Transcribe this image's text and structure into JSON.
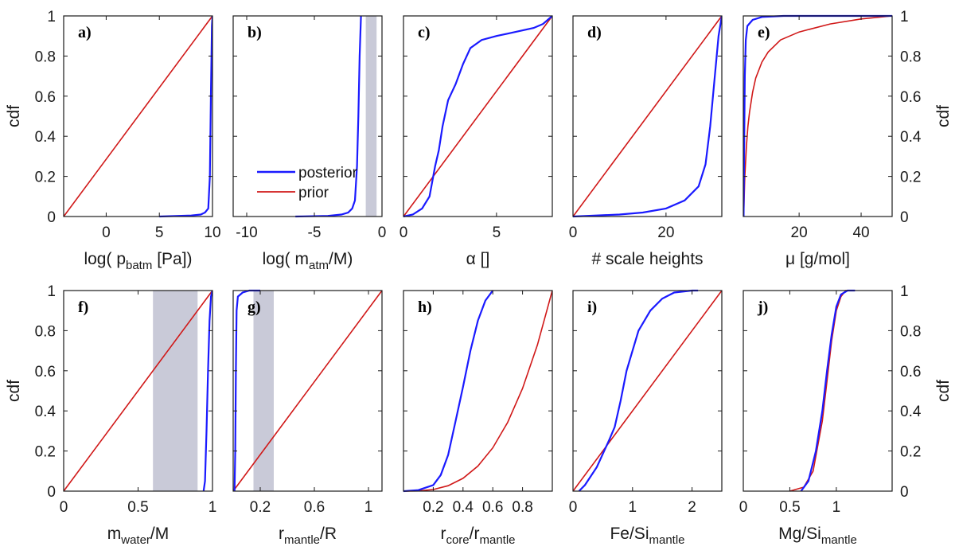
{
  "colors": {
    "posterior": "#1a1aff",
    "prior": "#d01818",
    "shade": "#c9cad8",
    "axis": "#1a1a1a"
  },
  "legend": {
    "posterior_label": "posterior",
    "prior_label": "prior"
  },
  "cdf_label": "cdf",
  "y_ticks": [
    "0",
    "0.2",
    "0.4",
    "0.6",
    "0.8",
    "1"
  ],
  "chart_data": [
    {
      "letter": "a)",
      "xlabel_parts": [
        "log( ",
        "p",
        "batm",
        " [Pa])"
      ],
      "xlim": [
        -4,
        10
      ],
      "xticks": [
        0,
        5,
        10
      ],
      "xtick_labels": [
        "0",
        "5",
        "10"
      ],
      "prior": [
        [
          -4,
          0
        ],
        [
          10,
          1
        ]
      ],
      "posterior": [
        [
          5,
          0
        ],
        [
          8,
          0.005
        ],
        [
          8.9,
          0.01
        ],
        [
          9.3,
          0.02
        ],
        [
          9.6,
          0.04
        ],
        [
          9.75,
          0.2
        ],
        [
          9.85,
          0.6
        ],
        [
          9.95,
          0.95
        ],
        [
          10,
          1
        ]
      ]
    },
    {
      "letter": "b)",
      "xlabel_parts": [
        "log( ",
        "m",
        "atm",
        "/M)"
      ],
      "xlim": [
        -11,
        0
      ],
      "xticks": [
        -10,
        -5,
        0
      ],
      "xtick_labels": [
        "-10",
        "-5",
        "0"
      ],
      "shade": [
        -1.2,
        -0.4
      ],
      "posterior": [
        [
          -6.4,
          0
        ],
        [
          -4,
          0.003
        ],
        [
          -3,
          0.01
        ],
        [
          -2.5,
          0.02
        ],
        [
          -2.2,
          0.04
        ],
        [
          -2.0,
          0.08
        ],
        [
          -1.85,
          0.25
        ],
        [
          -1.75,
          0.5
        ],
        [
          -1.65,
          0.8
        ],
        [
          -1.55,
          1
        ]
      ]
    },
    {
      "letter": "c)",
      "xlabel_parts": [
        "α []"
      ],
      "xlim": [
        0,
        8
      ],
      "xticks": [
        0,
        5
      ],
      "xtick_labels": [
        "0",
        "5"
      ],
      "prior": [
        [
          0,
          0
        ],
        [
          8,
          1
        ]
      ],
      "posterior": [
        [
          0,
          0
        ],
        [
          0.5,
          0.01
        ],
        [
          1,
          0.04
        ],
        [
          1.4,
          0.1
        ],
        [
          1.7,
          0.25
        ],
        [
          1.9,
          0.33
        ],
        [
          2.1,
          0.45
        ],
        [
          2.4,
          0.58
        ],
        [
          2.8,
          0.66
        ],
        [
          3.2,
          0.76
        ],
        [
          3.6,
          0.84
        ],
        [
          4.2,
          0.88
        ],
        [
          5,
          0.9
        ],
        [
          6,
          0.92
        ],
        [
          7,
          0.94
        ],
        [
          7.5,
          0.96
        ],
        [
          8,
          1
        ]
      ]
    },
    {
      "letter": "d)",
      "xlabel_parts": [
        "# scale heights"
      ],
      "xlim": [
        0,
        32
      ],
      "xticks": [
        0,
        20
      ],
      "xtick_labels": [
        "0",
        "20"
      ],
      "prior": [
        [
          0,
          0
        ],
        [
          32,
          1
        ]
      ],
      "posterior": [
        [
          0,
          0
        ],
        [
          5,
          0.005
        ],
        [
          10,
          0.01
        ],
        [
          15,
          0.02
        ],
        [
          20,
          0.04
        ],
        [
          24,
          0.08
        ],
        [
          27,
          0.15
        ],
        [
          28.5,
          0.26
        ],
        [
          29.5,
          0.45
        ],
        [
          30.5,
          0.7
        ],
        [
          31.3,
          0.9
        ],
        [
          32,
          1
        ]
      ]
    },
    {
      "letter": "e)",
      "xlabel_parts": [
        "μ [g/mol]"
      ],
      "xlim": [
        2,
        50
      ],
      "xticks": [
        20,
        40
      ],
      "xtick_labels": [
        "20",
        "40"
      ],
      "prior": [
        [
          2.1,
          0
        ],
        [
          2.5,
          0.2
        ],
        [
          3,
          0.35
        ],
        [
          3.5,
          0.45
        ],
        [
          4,
          0.52
        ],
        [
          5,
          0.62
        ],
        [
          6,
          0.69
        ],
        [
          8,
          0.77
        ],
        [
          10,
          0.82
        ],
        [
          14,
          0.88
        ],
        [
          20,
          0.92
        ],
        [
          30,
          0.96
        ],
        [
          40,
          0.985
        ],
        [
          50,
          1
        ]
      ],
      "posterior": [
        [
          2.1,
          0
        ],
        [
          2.3,
          0.4
        ],
        [
          2.5,
          0.7
        ],
        [
          2.8,
          0.88
        ],
        [
          3.3,
          0.95
        ],
        [
          5,
          0.98
        ],
        [
          8,
          0.995
        ],
        [
          15,
          1
        ],
        [
          50,
          1
        ]
      ]
    },
    {
      "letter": "f)",
      "xlabel_parts": [
        "m",
        "water",
        "/M"
      ],
      "xlim": [
        0,
        1
      ],
      "xticks": [
        0,
        0.5,
        1
      ],
      "xtick_labels": [
        "0",
        "0.5",
        "1"
      ],
      "shade": [
        0.6,
        0.9
      ],
      "prior": [
        [
          0,
          0
        ],
        [
          1,
          1
        ]
      ],
      "posterior": [
        [
          0.94,
          0
        ],
        [
          0.95,
          0.05
        ],
        [
          0.96,
          0.3
        ],
        [
          0.97,
          0.6
        ],
        [
          0.98,
          0.85
        ],
        [
          0.99,
          0.97
        ],
        [
          1,
          1
        ]
      ]
    },
    {
      "letter": "g)",
      "xlabel_parts": [
        "r",
        "mantle",
        "/R"
      ],
      "xlim": [
        0,
        1.1
      ],
      "xticks": [
        0.2,
        0.6,
        1
      ],
      "xtick_labels": [
        "0.2",
        "0.6",
        "1"
      ],
      "shade": [
        0.15,
        0.3
      ],
      "prior": [
        [
          0,
          0
        ],
        [
          1.1,
          1
        ]
      ],
      "posterior": [
        [
          0.01,
          0
        ],
        [
          0.015,
          0.2
        ],
        [
          0.02,
          0.6
        ],
        [
          0.025,
          0.9
        ],
        [
          0.035,
          0.97
        ],
        [
          0.07,
          0.99
        ],
        [
          0.12,
          1
        ],
        [
          0.2,
          1
        ]
      ]
    },
    {
      "letter": "h)",
      "xlabel_parts": [
        "r",
        "core",
        "/r",
        "mantle"
      ],
      "xlim": [
        0,
        1
      ],
      "xticks": [
        0.2,
        0.4,
        0.6,
        0.8
      ],
      "xtick_labels": [
        "0.2",
        "0.4",
        "0.6",
        "0.8"
      ],
      "prior": [
        [
          0,
          0
        ],
        [
          0.1,
          0.001
        ],
        [
          0.2,
          0.008
        ],
        [
          0.3,
          0.027
        ],
        [
          0.4,
          0.064
        ],
        [
          0.5,
          0.125
        ],
        [
          0.6,
          0.216
        ],
        [
          0.7,
          0.343
        ],
        [
          0.8,
          0.512
        ],
        [
          0.9,
          0.729
        ],
        [
          1,
          1
        ]
      ],
      "posterior": [
        [
          0,
          0
        ],
        [
          0.1,
          0.005
        ],
        [
          0.2,
          0.03
        ],
        [
          0.25,
          0.08
        ],
        [
          0.3,
          0.18
        ],
        [
          0.35,
          0.35
        ],
        [
          0.4,
          0.52
        ],
        [
          0.45,
          0.7
        ],
        [
          0.5,
          0.85
        ],
        [
          0.55,
          0.95
        ],
        [
          0.6,
          1
        ]
      ]
    },
    {
      "letter": "i)",
      "xlabel_parts": [
        "Fe/Si",
        "mantle"
      ],
      "xlim": [
        0,
        2.5
      ],
      "xticks": [
        0,
        1,
        2
      ],
      "xtick_labels": [
        "0",
        "1",
        "2"
      ],
      "prior": [
        [
          0,
          0
        ],
        [
          2.5,
          1
        ]
      ],
      "posterior": [
        [
          0.1,
          0
        ],
        [
          0.2,
          0.03
        ],
        [
          0.4,
          0.12
        ],
        [
          0.6,
          0.25
        ],
        [
          0.7,
          0.32
        ],
        [
          0.8,
          0.45
        ],
        [
          0.9,
          0.6
        ],
        [
          1.0,
          0.7
        ],
        [
          1.1,
          0.8
        ],
        [
          1.3,
          0.9
        ],
        [
          1.5,
          0.96
        ],
        [
          1.7,
          0.99
        ],
        [
          2.0,
          1
        ],
        [
          2.1,
          1
        ]
      ]
    },
    {
      "letter": "j)",
      "xlabel_parts": [
        "Mg/Si",
        "mantle"
      ],
      "xlim": [
        0,
        1.6
      ],
      "xticks": [
        0,
        0.5,
        1
      ],
      "xtick_labels": [
        "0",
        "0.5",
        "1"
      ],
      "prior": [
        [
          0.5,
          0
        ],
        [
          0.65,
          0.02
        ],
        [
          0.75,
          0.1
        ],
        [
          0.85,
          0.35
        ],
        [
          0.9,
          0.55
        ],
        [
          0.95,
          0.75
        ],
        [
          1.0,
          0.9
        ],
        [
          1.05,
          0.97
        ],
        [
          1.1,
          1
        ],
        [
          1.2,
          1
        ]
      ],
      "posterior": [
        [
          0.62,
          0
        ],
        [
          0.7,
          0.05
        ],
        [
          0.78,
          0.2
        ],
        [
          0.85,
          0.4
        ],
        [
          0.9,
          0.6
        ],
        [
          0.95,
          0.78
        ],
        [
          1.0,
          0.92
        ],
        [
          1.05,
          0.98
        ],
        [
          1.12,
          1
        ],
        [
          1.2,
          1
        ]
      ]
    }
  ]
}
